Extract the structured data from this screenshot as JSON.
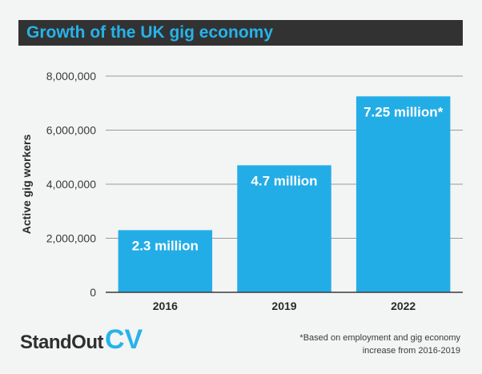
{
  "title": "Growth of the UK gig economy",
  "brand": {
    "name": "StandOut",
    "accent": "CV"
  },
  "footnote": "*Based on employment and gig economy increase from 2016-2019",
  "colors": {
    "bar": "#23ade6",
    "title_bg": "#323233",
    "title_text": "#26b3ea",
    "axis": "#3a3a3a",
    "grid": "#9a9a9a"
  },
  "chart_data": {
    "type": "bar",
    "title": "Growth of the UK gig economy",
    "ylabel": "Active gig workers",
    "xlabel": "",
    "categories": [
      "2016",
      "2019",
      "2022"
    ],
    "values": [
      2300000,
      4700000,
      7250000
    ],
    "data_labels": [
      "2.3 million",
      "4.7 million",
      "7.25 million*"
    ],
    "ylim": [
      0,
      8000000
    ],
    "yticks": [
      0,
      2000000,
      4000000,
      6000000,
      8000000
    ],
    "ytick_labels": [
      "0",
      "2,000,000",
      "4,000,000",
      "6,000,000",
      "8,000,000"
    ],
    "grid": true,
    "legend": "none"
  }
}
